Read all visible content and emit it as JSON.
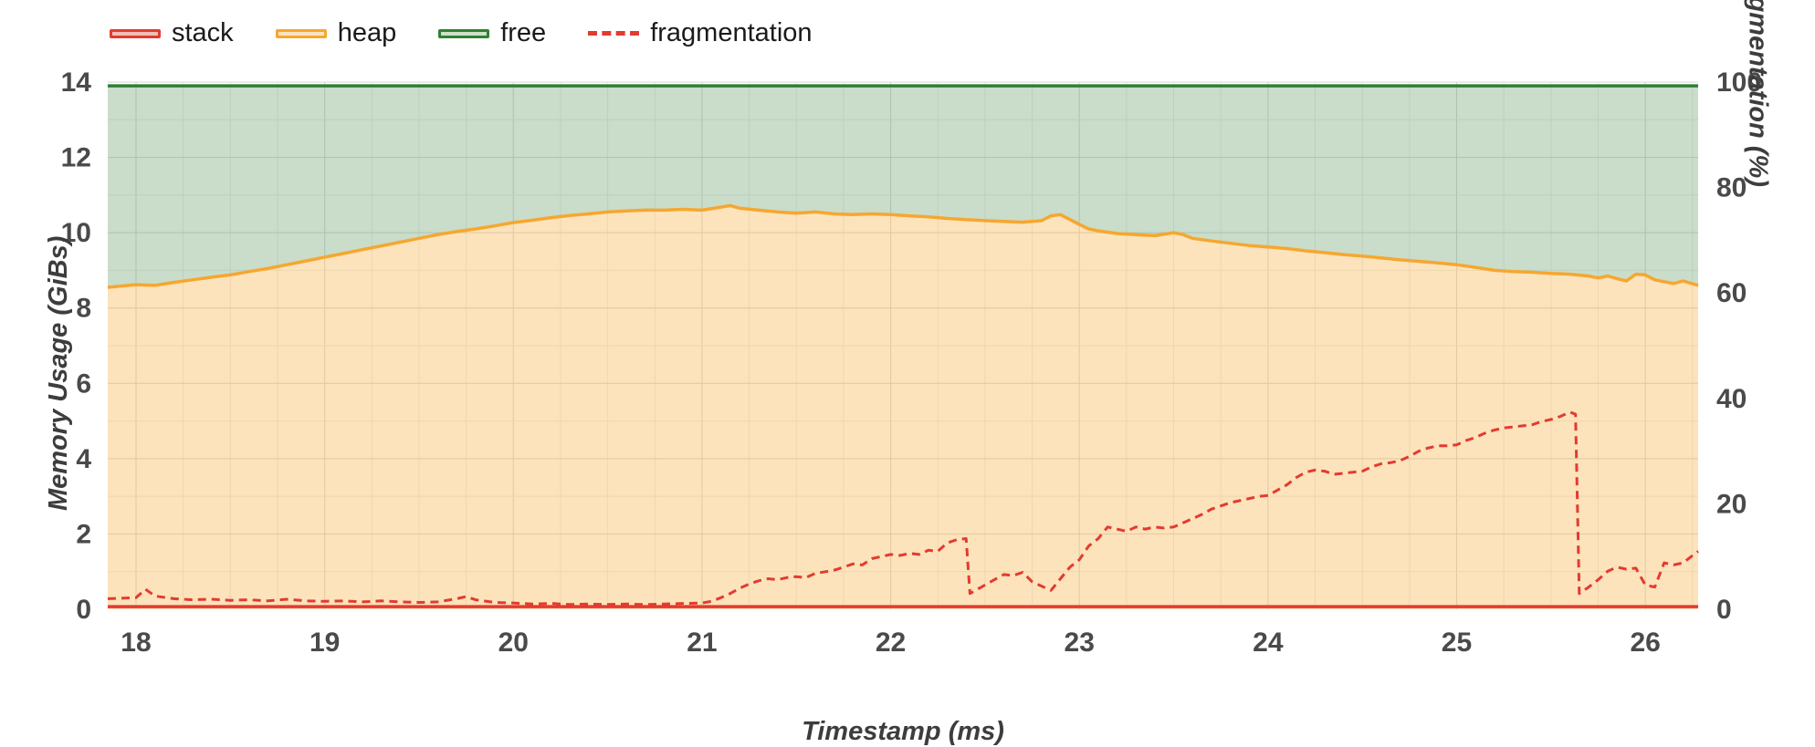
{
  "chart": {
    "legend": [
      {
        "label": "stack",
        "color": "#e33b2f",
        "fill": "#f5bcb6",
        "style": "solid"
      },
      {
        "label": "heap",
        "color": "#f6a72f",
        "fill": "#fbe3bf",
        "style": "solid"
      },
      {
        "label": "free",
        "color": "#2f8032",
        "fill": "#cfe0c8",
        "style": "solid"
      },
      {
        "label": "fragmentation",
        "color": "#e33b2f",
        "fill": "none",
        "style": "dashed"
      }
    ],
    "y_left": {
      "title": "Memory Usage (GiBs)",
      "min": 0,
      "max": 14,
      "ticks": [
        0,
        2,
        4,
        6,
        8,
        10,
        12,
        14
      ]
    },
    "y_right": {
      "title": "Fragmentation (%)",
      "min": 0,
      "max": 100,
      "ticks": [
        0,
        20,
        40,
        60,
        80,
        100
      ]
    },
    "x": {
      "title": "Timestamp (ms)",
      "min": 17.85,
      "max": 26.28,
      "ticks": [
        18,
        19,
        20,
        21,
        22,
        23,
        24,
        25,
        26
      ]
    }
  },
  "chart_data": {
    "type": "area",
    "title": "",
    "xlabel": "Timestamp (ms)",
    "ylabel_left": "Memory Usage (GiBs)",
    "ylabel_right": "Fragmentation (%)",
    "x_range": [
      17.85,
      26.28
    ],
    "y_left_range": [
      0,
      14
    ],
    "y_right_range": [
      0,
      100
    ],
    "grid": true,
    "legend_position": "top-left",
    "series": [
      {
        "name": "free",
        "axis": "left",
        "kind": "band_above_heap",
        "stroke": "#2f8032",
        "fill": "#4f8f4f",
        "fill_opacity": 0.3,
        "stroke_width": 3.5,
        "points": [
          [
            17.85,
            13.9
          ],
          [
            26.28,
            13.9
          ]
        ]
      },
      {
        "name": "heap",
        "axis": "left",
        "kind": "area",
        "stroke": "#f6a72f",
        "fill": "#f6a72f",
        "fill_opacity": 0.32,
        "stroke_width": 3.5,
        "points": [
          [
            17.85,
            8.55
          ],
          [
            18.0,
            8.62
          ],
          [
            18.1,
            8.6
          ],
          [
            18.2,
            8.68
          ],
          [
            18.3,
            8.75
          ],
          [
            18.4,
            8.82
          ],
          [
            18.5,
            8.88
          ],
          [
            18.6,
            8.97
          ],
          [
            18.7,
            9.05
          ],
          [
            18.8,
            9.15
          ],
          [
            18.9,
            9.25
          ],
          [
            19.0,
            9.35
          ],
          [
            19.1,
            9.45
          ],
          [
            19.2,
            9.55
          ],
          [
            19.3,
            9.65
          ],
          [
            19.4,
            9.75
          ],
          [
            19.5,
            9.85
          ],
          [
            19.6,
            9.95
          ],
          [
            19.7,
            10.03
          ],
          [
            19.8,
            10.1
          ],
          [
            19.9,
            10.18
          ],
          [
            20.0,
            10.27
          ],
          [
            20.1,
            10.33
          ],
          [
            20.2,
            10.4
          ],
          [
            20.3,
            10.46
          ],
          [
            20.4,
            10.5
          ],
          [
            20.5,
            10.55
          ],
          [
            20.6,
            10.58
          ],
          [
            20.7,
            10.6
          ],
          [
            20.8,
            10.6
          ],
          [
            20.9,
            10.62
          ],
          [
            21.0,
            10.6
          ],
          [
            21.1,
            10.68
          ],
          [
            21.15,
            10.72
          ],
          [
            21.2,
            10.65
          ],
          [
            21.3,
            10.6
          ],
          [
            21.4,
            10.55
          ],
          [
            21.5,
            10.52
          ],
          [
            21.6,
            10.55
          ],
          [
            21.7,
            10.5
          ],
          [
            21.8,
            10.48
          ],
          [
            21.9,
            10.5
          ],
          [
            22.0,
            10.48
          ],
          [
            22.1,
            10.45
          ],
          [
            22.2,
            10.42
          ],
          [
            22.3,
            10.38
          ],
          [
            22.4,
            10.35
          ],
          [
            22.5,
            10.32
          ],
          [
            22.6,
            10.3
          ],
          [
            22.7,
            10.28
          ],
          [
            22.8,
            10.32
          ],
          [
            22.85,
            10.45
          ],
          [
            22.9,
            10.48
          ],
          [
            22.95,
            10.35
          ],
          [
            23.0,
            10.22
          ],
          [
            23.05,
            10.1
          ],
          [
            23.1,
            10.05
          ],
          [
            23.2,
            9.98
          ],
          [
            23.3,
            9.95
          ],
          [
            23.4,
            9.92
          ],
          [
            23.5,
            10.0
          ],
          [
            23.55,
            9.95
          ],
          [
            23.6,
            9.85
          ],
          [
            23.7,
            9.78
          ],
          [
            23.8,
            9.72
          ],
          [
            23.9,
            9.66
          ],
          [
            24.0,
            9.62
          ],
          [
            24.1,
            9.58
          ],
          [
            24.2,
            9.52
          ],
          [
            24.3,
            9.47
          ],
          [
            24.4,
            9.42
          ],
          [
            24.5,
            9.38
          ],
          [
            24.6,
            9.33
          ],
          [
            24.7,
            9.28
          ],
          [
            24.8,
            9.24
          ],
          [
            24.9,
            9.2
          ],
          [
            25.0,
            9.15
          ],
          [
            25.1,
            9.08
          ],
          [
            25.2,
            9.0
          ],
          [
            25.3,
            8.97
          ],
          [
            25.4,
            8.95
          ],
          [
            25.5,
            8.92
          ],
          [
            25.6,
            8.9
          ],
          [
            25.7,
            8.85
          ],
          [
            25.75,
            8.8
          ],
          [
            25.8,
            8.85
          ],
          [
            25.85,
            8.78
          ],
          [
            25.9,
            8.72
          ],
          [
            25.95,
            8.9
          ],
          [
            26.0,
            8.88
          ],
          [
            26.05,
            8.75
          ],
          [
            26.1,
            8.7
          ],
          [
            26.15,
            8.65
          ],
          [
            26.2,
            8.72
          ],
          [
            26.28,
            8.6
          ]
        ]
      },
      {
        "name": "stack",
        "axis": "left",
        "kind": "line",
        "stroke": "#e33b2f",
        "fill": "none",
        "fill_opacity": 0,
        "stroke_width": 3.5,
        "points": [
          [
            17.85,
            0.07
          ],
          [
            26.28,
            0.07
          ]
        ]
      },
      {
        "name": "fragmentation",
        "axis": "right",
        "kind": "dashed_line",
        "stroke": "#e33b2f",
        "fill": "none",
        "fill_opacity": 0,
        "stroke_width": 3,
        "points": [
          [
            17.85,
            2.0
          ],
          [
            18.0,
            2.2
          ],
          [
            18.05,
            3.8
          ],
          [
            18.1,
            2.5
          ],
          [
            18.2,
            2.0
          ],
          [
            18.3,
            1.8
          ],
          [
            18.4,
            1.9
          ],
          [
            18.5,
            1.7
          ],
          [
            18.6,
            1.8
          ],
          [
            18.7,
            1.6
          ],
          [
            18.8,
            1.9
          ],
          [
            18.9,
            1.6
          ],
          [
            19.0,
            1.5
          ],
          [
            19.1,
            1.6
          ],
          [
            19.2,
            1.4
          ],
          [
            19.3,
            1.6
          ],
          [
            19.4,
            1.4
          ],
          [
            19.5,
            1.3
          ],
          [
            19.6,
            1.4
          ],
          [
            19.7,
            2.0
          ],
          [
            19.75,
            2.4
          ],
          [
            19.8,
            1.8
          ],
          [
            19.9,
            1.3
          ],
          [
            20.0,
            1.2
          ],
          [
            20.1,
            1.0
          ],
          [
            20.2,
            1.1
          ],
          [
            20.3,
            0.9
          ],
          [
            20.4,
            1.0
          ],
          [
            20.5,
            0.9
          ],
          [
            20.6,
            1.0
          ],
          [
            20.7,
            0.9
          ],
          [
            20.8,
            1.0
          ],
          [
            20.9,
            1.1
          ],
          [
            21.0,
            1.2
          ],
          [
            21.05,
            1.5
          ],
          [
            21.1,
            2.2
          ],
          [
            21.15,
            3.0
          ],
          [
            21.2,
            4.0
          ],
          [
            21.25,
            4.8
          ],
          [
            21.3,
            5.4
          ],
          [
            21.35,
            5.8
          ],
          [
            21.4,
            5.6
          ],
          [
            21.45,
            6.0
          ],
          [
            21.5,
            6.2
          ],
          [
            21.55,
            6.0
          ],
          [
            21.6,
            6.8
          ],
          [
            21.7,
            7.4
          ],
          [
            21.8,
            8.6
          ],
          [
            21.85,
            8.4
          ],
          [
            21.9,
            9.6
          ],
          [
            22.0,
            10.4
          ],
          [
            22.05,
            10.2
          ],
          [
            22.1,
            10.6
          ],
          [
            22.15,
            10.4
          ],
          [
            22.2,
            11.2
          ],
          [
            22.25,
            11.0
          ],
          [
            22.3,
            12.6
          ],
          [
            22.35,
            13.2
          ],
          [
            22.4,
            13.4
          ],
          [
            22.42,
            3.0
          ],
          [
            22.5,
            4.6
          ],
          [
            22.55,
            5.6
          ],
          [
            22.6,
            6.6
          ],
          [
            22.65,
            6.4
          ],
          [
            22.7,
            7.0
          ],
          [
            22.75,
            5.2
          ],
          [
            22.8,
            4.4
          ],
          [
            22.85,
            3.6
          ],
          [
            22.9,
            5.8
          ],
          [
            22.95,
            8.0
          ],
          [
            23.0,
            9.4
          ],
          [
            23.05,
            12.0
          ],
          [
            23.1,
            13.4
          ],
          [
            23.15,
            15.6
          ],
          [
            23.2,
            15.2
          ],
          [
            23.25,
            14.8
          ],
          [
            23.3,
            15.6
          ],
          [
            23.35,
            15.2
          ],
          [
            23.4,
            15.6
          ],
          [
            23.45,
            15.4
          ],
          [
            23.5,
            15.6
          ],
          [
            23.55,
            16.4
          ],
          [
            23.6,
            17.2
          ],
          [
            23.65,
            18.0
          ],
          [
            23.7,
            19.0
          ],
          [
            23.75,
            19.6
          ],
          [
            23.8,
            20.2
          ],
          [
            23.85,
            20.6
          ],
          [
            23.9,
            21.0
          ],
          [
            23.95,
            21.4
          ],
          [
            24.0,
            21.6
          ],
          [
            24.05,
            22.6
          ],
          [
            24.1,
            23.6
          ],
          [
            24.15,
            25.0
          ],
          [
            24.2,
            26.0
          ],
          [
            24.25,
            26.4
          ],
          [
            24.3,
            26.2
          ],
          [
            24.35,
            25.6
          ],
          [
            24.4,
            25.8
          ],
          [
            24.45,
            26.0
          ],
          [
            24.5,
            26.2
          ],
          [
            24.55,
            27.0
          ],
          [
            24.6,
            27.6
          ],
          [
            24.65,
            27.8
          ],
          [
            24.7,
            28.2
          ],
          [
            24.75,
            29.0
          ],
          [
            24.8,
            30.0
          ],
          [
            24.85,
            30.6
          ],
          [
            24.9,
            31.0
          ],
          [
            24.95,
            31.0
          ],
          [
            25.0,
            31.2
          ],
          [
            25.05,
            32.0
          ],
          [
            25.1,
            32.6
          ],
          [
            25.15,
            33.4
          ],
          [
            25.2,
            34.0
          ],
          [
            25.25,
            34.4
          ],
          [
            25.3,
            34.6
          ],
          [
            25.35,
            34.8
          ],
          [
            25.4,
            35.0
          ],
          [
            25.45,
            35.6
          ],
          [
            25.5,
            36.0
          ],
          [
            25.55,
            36.6
          ],
          [
            25.6,
            37.4
          ],
          [
            25.63,
            37.0
          ],
          [
            25.65,
            3.0
          ],
          [
            25.7,
            4.2
          ],
          [
            25.75,
            5.6
          ],
          [
            25.8,
            7.2
          ],
          [
            25.85,
            8.0
          ],
          [
            25.9,
            7.6
          ],
          [
            25.95,
            7.8
          ],
          [
            26.0,
            4.6
          ],
          [
            26.05,
            4.2
          ],
          [
            26.1,
            8.8
          ],
          [
            26.15,
            8.4
          ],
          [
            26.2,
            8.8
          ],
          [
            26.28,
            11.0
          ]
        ]
      }
    ]
  }
}
